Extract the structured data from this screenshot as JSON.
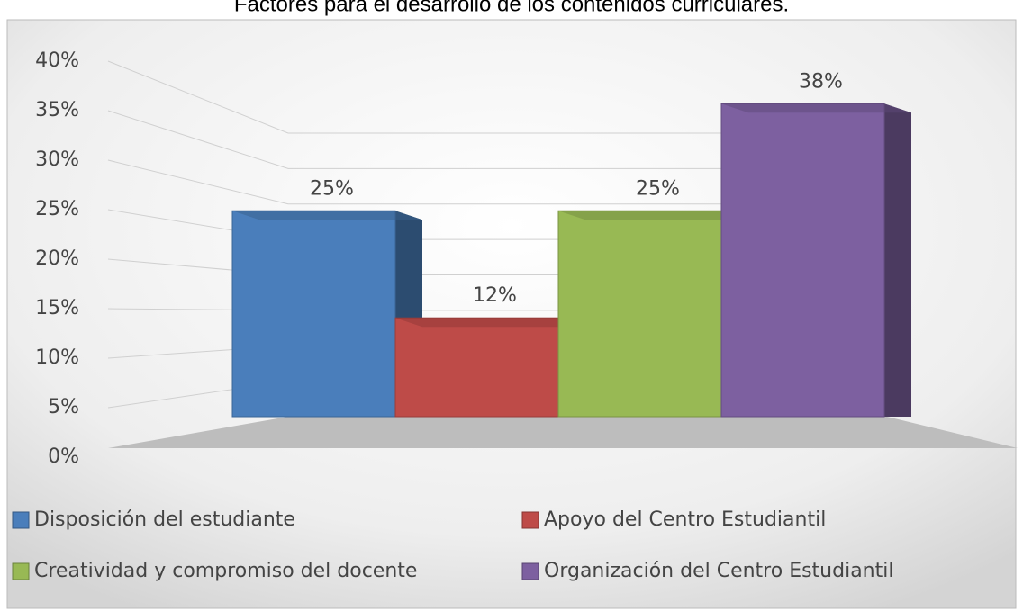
{
  "chart_data": {
    "type": "bar3d",
    "title": "Factores para el desarrollo de los contenidos curriculares.",
    "series": [
      {
        "name": "Disposición del estudiante",
        "color": "#4a7ebb",
        "values": [
          25
        ],
        "value_labels": [
          "25%"
        ]
      },
      {
        "name": "Apoyo del Centro Estudiantil",
        "color": "#be4b48",
        "values": [
          12
        ],
        "value_labels": [
          "12%"
        ]
      },
      {
        "name": "Creatividad y compromiso del docente",
        "color": "#98b954",
        "values": [
          25
        ],
        "value_labels": [
          "25%"
        ]
      },
      {
        "name": "Organización del Centro Estudiantil",
        "color": "#7d60a0",
        "values": [
          38
        ],
        "value_labels": [
          "38%"
        ]
      }
    ],
    "ylim": [
      0,
      40
    ],
    "yticks": [
      {
        "value": 0,
        "label": "0%"
      },
      {
        "value": 5,
        "label": "5%"
      },
      {
        "value": 10,
        "label": "10%"
      },
      {
        "value": 15,
        "label": "15%"
      },
      {
        "value": 20,
        "label": "20%"
      },
      {
        "value": 25,
        "label": "25%"
      },
      {
        "value": 30,
        "label": "30%"
      },
      {
        "value": 35,
        "label": "35%"
      },
      {
        "value": 40,
        "label": "40%"
      }
    ],
    "grid": true
  }
}
